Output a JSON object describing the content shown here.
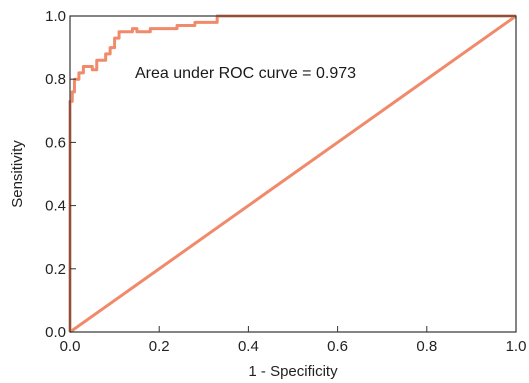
{
  "chart_data": {
    "type": "line",
    "title": "",
    "xlabel": "1 - Specificity",
    "ylabel": "Sensitivity",
    "xlim": [
      0,
      1
    ],
    "ylim": [
      0,
      1
    ],
    "x_ticks": [
      "0.0",
      "0.2",
      "0.4",
      "0.6",
      "0.8",
      "1.0"
    ],
    "y_ticks": [
      "0.0",
      "0.2",
      "0.4",
      "0.6",
      "0.8",
      "1.0"
    ],
    "grid": false,
    "annotation": "Area under ROC curve = 0.973",
    "auc": 0.973,
    "colors": {
      "curve": "#f08a6a",
      "frame": "#333333"
    },
    "series": [
      {
        "role": "roc",
        "x": [
          0.0,
          0.0,
          0.005,
          0.005,
          0.01,
          0.01,
          0.02,
          0.02,
          0.03,
          0.03,
          0.05,
          0.05,
          0.06,
          0.06,
          0.08,
          0.08,
          0.09,
          0.09,
          0.1,
          0.1,
          0.11,
          0.11,
          0.14,
          0.14,
          0.15,
          0.15,
          0.18,
          0.18,
          0.24,
          0.24,
          0.28,
          0.28,
          0.33,
          0.33,
          1.0
        ],
        "y": [
          0.0,
          0.73,
          0.73,
          0.76,
          0.76,
          0.8,
          0.8,
          0.82,
          0.82,
          0.84,
          0.84,
          0.83,
          0.83,
          0.86,
          0.86,
          0.88,
          0.88,
          0.9,
          0.9,
          0.93,
          0.93,
          0.95,
          0.95,
          0.96,
          0.96,
          0.95,
          0.95,
          0.96,
          0.96,
          0.97,
          0.97,
          0.98,
          0.98,
          1.0,
          1.0
        ]
      },
      {
        "role": "reference",
        "x": [
          0.0,
          1.0
        ],
        "y": [
          0.0,
          1.0
        ]
      }
    ]
  }
}
